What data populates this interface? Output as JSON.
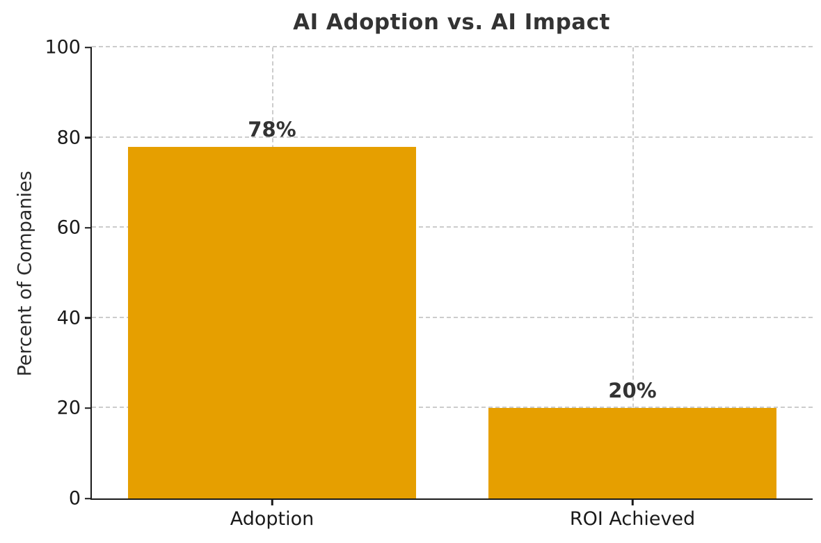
{
  "chart_data": {
    "type": "bar",
    "title": "AI Adoption vs. AI Impact",
    "ylabel": "Percent of Companies",
    "xlabel": "",
    "categories": [
      "Adoption",
      "ROI Achieved"
    ],
    "values": [
      78,
      20
    ],
    "value_labels": [
      "78%",
      "20%"
    ],
    "ylim": [
      0,
      100
    ],
    "yticks": [
      0,
      20,
      40,
      60,
      80,
      100
    ],
    "bar_color": "#E69F00",
    "grid": true,
    "grid_style": "dashed",
    "legend": "none",
    "background": "#ffffff"
  }
}
